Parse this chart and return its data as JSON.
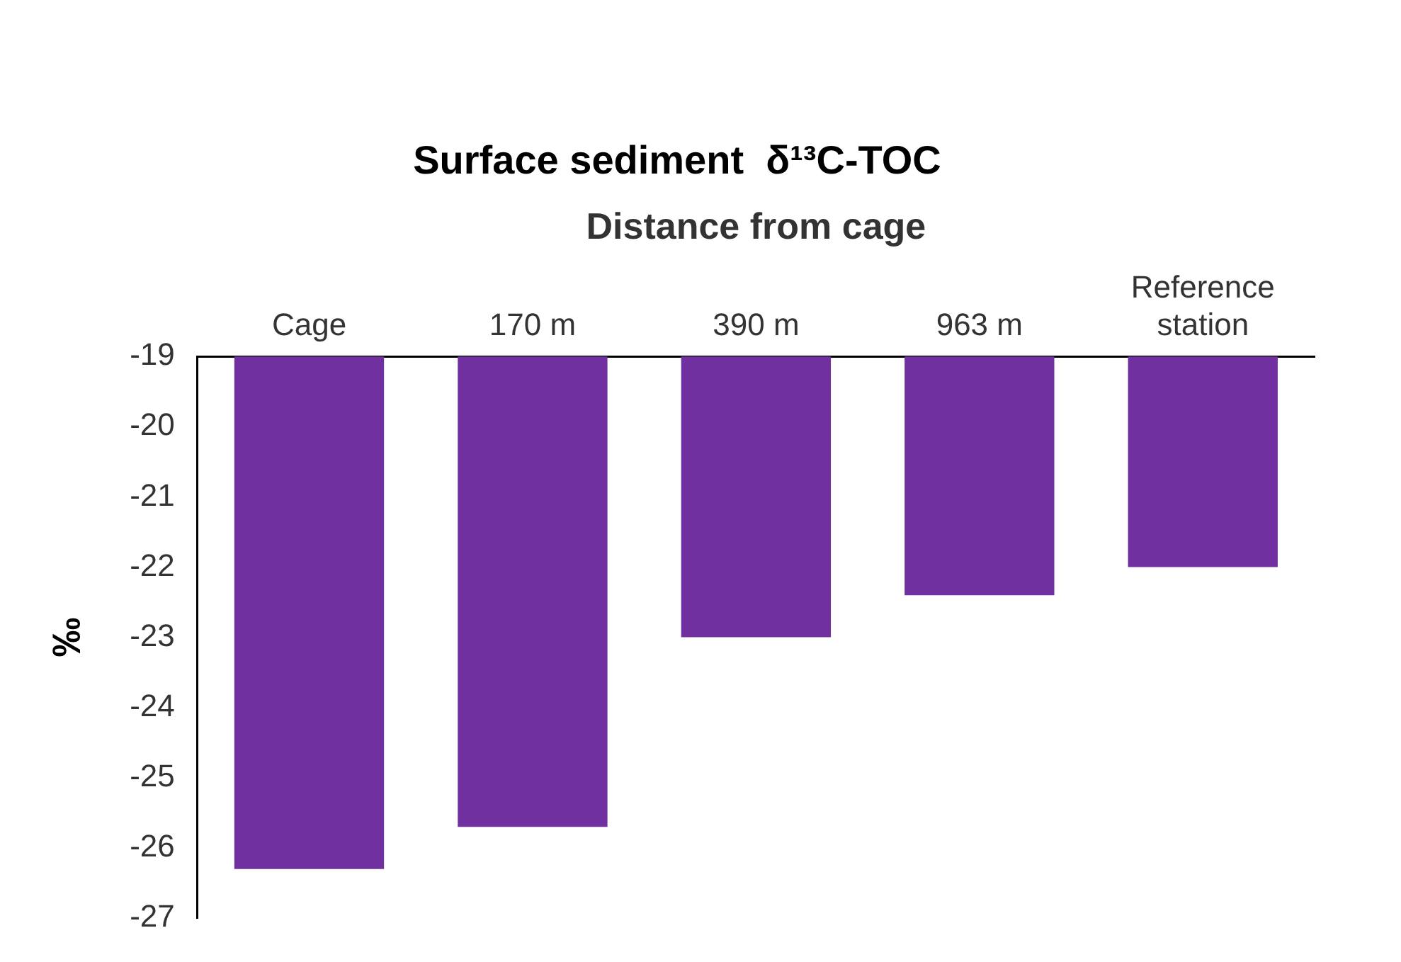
{
  "chart_data": {
    "type": "bar",
    "title": "Surface sediment  δ¹³C-TOC",
    "xlabel": "Distance from cage",
    "ylabel": "‰",
    "categories": [
      "Cage",
      "170 m",
      "390 m",
      "963 m",
      "Reference station"
    ],
    "values": [
      -26.3,
      -25.7,
      -23.0,
      -22.4,
      -22.0
    ],
    "color": "#7030a0",
    "ylim": [
      -27,
      -19
    ],
    "yticks": [
      -27,
      -26,
      -25,
      -24,
      -23,
      -22,
      -21,
      -20,
      -19
    ],
    "grid": false,
    "legend": false
  }
}
